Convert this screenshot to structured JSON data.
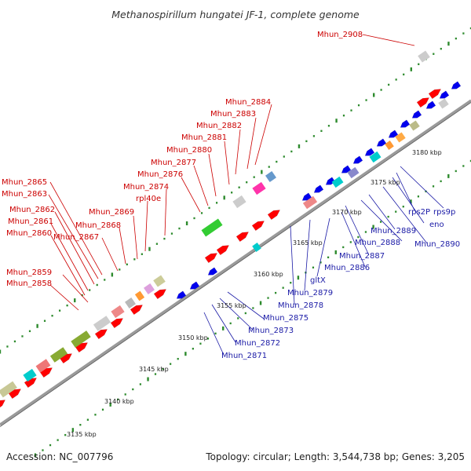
{
  "title": "Methanospirillum hungatei JF-1, complete genome",
  "footer": {
    "accession": "Accession: NC_007796",
    "topology": "Topology: circular; Length: 3,544,738 bp; Genes: 3,205"
  },
  "scale_labels": [
    "3135 kbp",
    "3140 kbp",
    "3145 kbp",
    "3150 kbp",
    "3155 kbp",
    "3160 kbp",
    "3165 kbp",
    "3170 kbp",
    "3175 kbp",
    "3180 kbp"
  ],
  "labels_top": [
    "Mhun_2908",
    "Mhun_2884",
    "Mhun_2883",
    "Mhun_2882",
    "Mhun_2881",
    "Mhun_2880",
    "Mhun_2877",
    "Mhun_2876",
    "Mhun_2874",
    "rpl40e",
    "Mhun_2869",
    "Mhun_2868",
    "Mhun_2867",
    "Mhun_2865",
    "Mhun_2863",
    "Mhun_2862",
    "Mhun_2861",
    "Mhun_2860",
    "Mhun_2859",
    "Mhun_2858"
  ],
  "labels_bottom": [
    "rps9p",
    "rps2P",
    "eno",
    "Mhun_2890",
    "Mhun_2889",
    "Mhun_2888",
    "Mhun_2887",
    "Mhun_2886",
    "gltX",
    "Mhun_2879",
    "Mhun_2878",
    "Mhun_2875",
    "Mhun_2873",
    "Mhun_2872",
    "Mhun_2871"
  ],
  "colors": {
    "forward_gene": "#ff0000",
    "reverse_gene": "#0000ee",
    "top_label": "#cc0000",
    "bottom_label": "#1a1aa6",
    "backbone": "#9a9a9a",
    "tick_dots": "#2e8b2e"
  }
}
